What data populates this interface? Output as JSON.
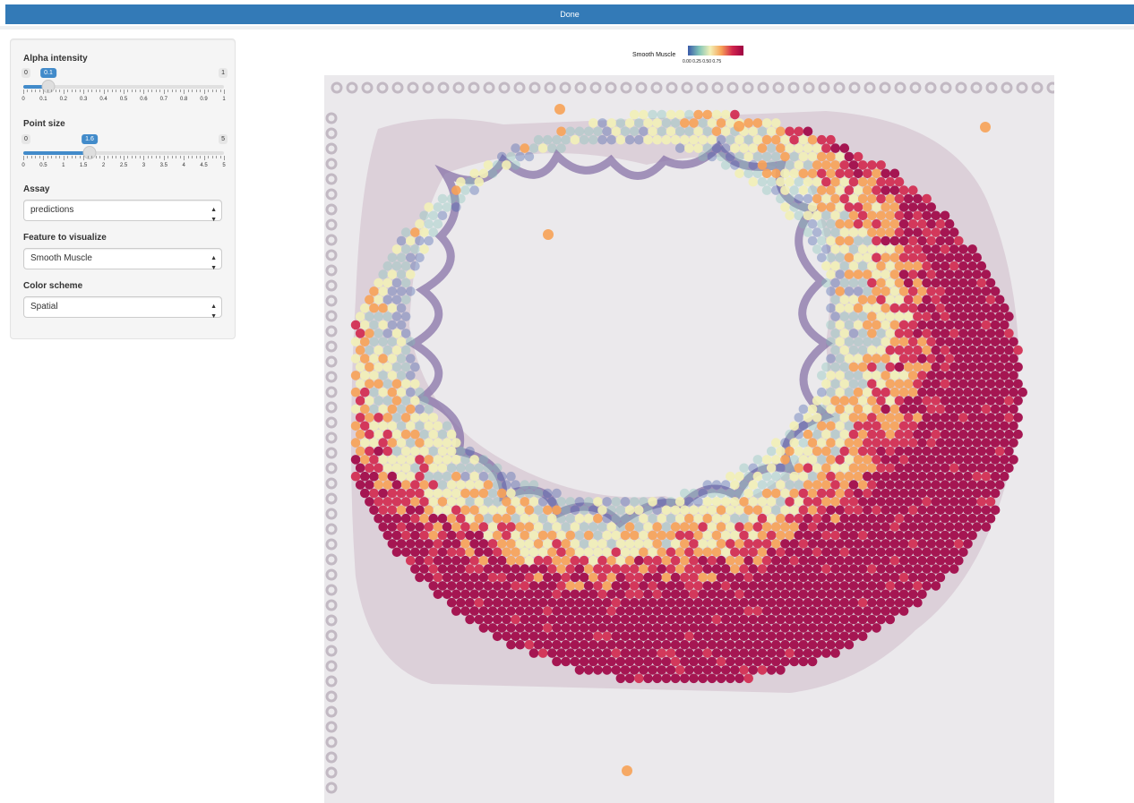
{
  "done_bar": {
    "label": "Done"
  },
  "panel": {
    "alpha": {
      "label": "Alpha intensity",
      "min": "0",
      "max": "1",
      "value": "0.1",
      "ticks": [
        "0",
        "0.1",
        "0.2",
        "0.3",
        "0.4",
        "0.5",
        "0.6",
        "0.7",
        "0.8",
        "0.9",
        "1"
      ]
    },
    "point_size": {
      "label": "Point size",
      "min": "0",
      "max": "5",
      "value": "1.6",
      "ticks": [
        "0",
        "0.5",
        "1",
        "1.5",
        "2",
        "2.5",
        "3",
        "3.5",
        "4",
        "4.5",
        "5"
      ]
    },
    "assay": {
      "label": "Assay",
      "selected": "predictions"
    },
    "feature": {
      "label": "Feature to visualize",
      "selected": "Smooth Muscle"
    },
    "color_scheme": {
      "label": "Color scheme",
      "selected": "Spatial"
    }
  },
  "legend": {
    "title": "Smooth Muscle",
    "ticks": "0.00 0.25 0.50 0.75",
    "colors": [
      "#3a5aa9",
      "#7fc3b8",
      "#f2f0b7",
      "#f7a257",
      "#d1274d",
      "#9e0142"
    ]
  },
  "icons": {
    "select_caret": "caret-updown-icon"
  }
}
